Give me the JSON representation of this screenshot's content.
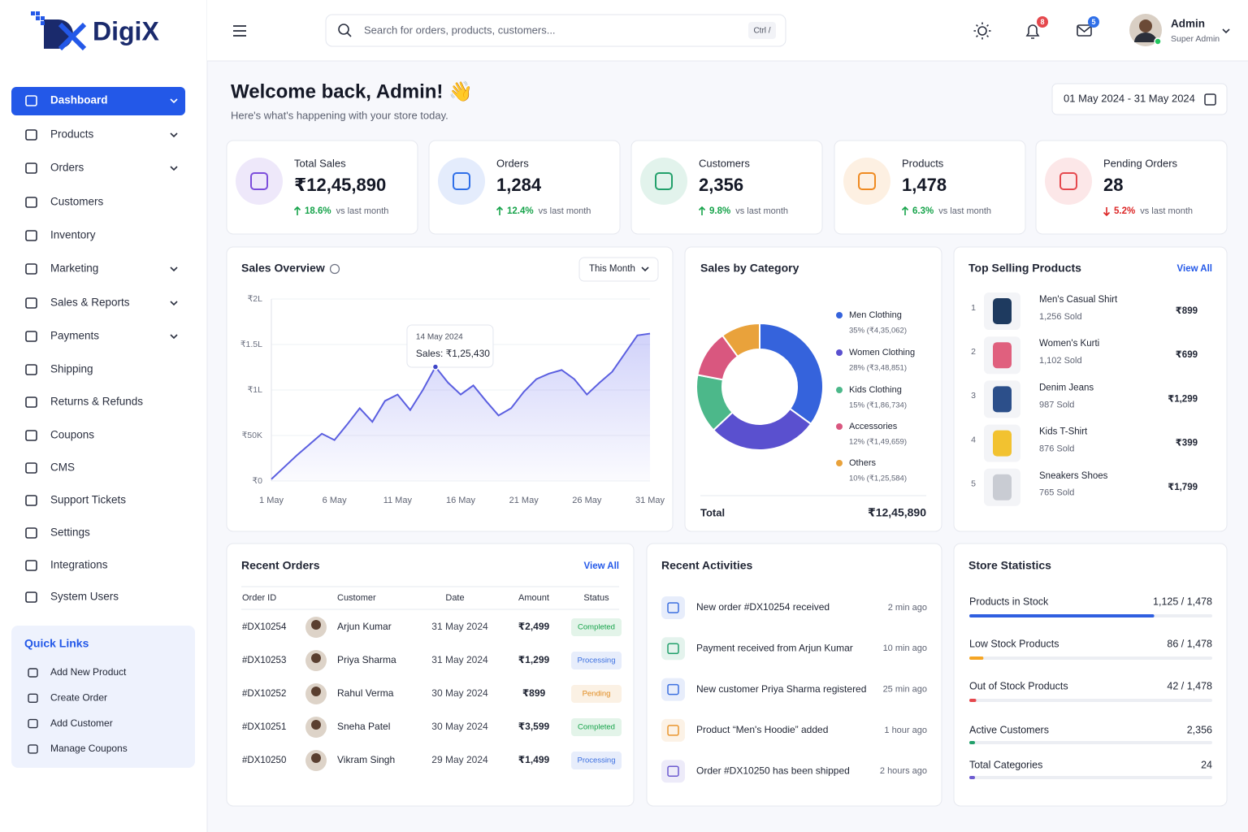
{
  "brand": "DigiX",
  "sidebar": {
    "menu": [
      {
        "label": "Dashboard",
        "expandable": true,
        "active": true
      },
      {
        "label": "Products",
        "expandable": true
      },
      {
        "label": "Orders",
        "expandable": true
      },
      {
        "label": "Customers"
      },
      {
        "label": "Inventory"
      },
      {
        "label": "Marketing",
        "expandable": true
      },
      {
        "label": "Sales & Reports",
        "expandable": true
      },
      {
        "label": "Payments",
        "expandable": true
      },
      {
        "label": "Shipping"
      },
      {
        "label": "Returns & Refunds"
      },
      {
        "label": "Coupons"
      },
      {
        "label": "CMS"
      },
      {
        "label": "Support Tickets"
      },
      {
        "label": "Settings"
      },
      {
        "label": "Integrations"
      },
      {
        "label": "System Users"
      }
    ],
    "quick_links_title": "Quick Links",
    "quick_links": [
      "Add New Product",
      "Create Order",
      "Add Customer",
      "Manage Coupons"
    ]
  },
  "header": {
    "search_placeholder": "Search for orders, products, customers...",
    "shortcut": "Ctrl /",
    "notifications": 8,
    "messages": 5,
    "user_name": "Admin",
    "user_role": "Super Admin"
  },
  "welcome": {
    "title": "Welcome back, Admin! 👋",
    "subtitle": "Here's what's happening with your store today.",
    "date_range": "01 May 2024 - 31 May 2024"
  },
  "kpis": [
    {
      "label": "Total Sales",
      "value": "₹12,45,890",
      "change": "18.6%",
      "direction": "up",
      "change_color": "#16a34a",
      "compare": "vs last month",
      "color": "#7c4ddb"
    },
    {
      "label": "Orders",
      "value": "1,284",
      "change": "12.4%",
      "direction": "up",
      "change_color": "#16a34a",
      "compare": "vs last month",
      "color": "#2f6fe8"
    },
    {
      "label": "Customers",
      "value": "2,356",
      "change": "9.8%",
      "direction": "up",
      "change_color": "#16a34a",
      "compare": "vs last month",
      "color": "#22a06b"
    },
    {
      "label": "Products",
      "value": "1,478",
      "change": "6.3%",
      "direction": "up",
      "change_color": "#16a34a",
      "compare": "vs last month",
      "color": "#ef8a21"
    },
    {
      "label": "Pending Orders",
      "value": "28",
      "change": "5.2%",
      "direction": "down",
      "change_color": "#dc2626",
      "compare": "vs last month",
      "color": "#e5484d"
    }
  ],
  "chart_data": [
    {
      "type": "line",
      "title": "Sales Overview",
      "period": "This Month",
      "categories": [
        "1 May",
        null,
        null,
        null,
        null,
        "6 May",
        null,
        null,
        null,
        null,
        "11 May",
        null,
        null,
        null,
        null,
        "16 May",
        null,
        null,
        null,
        null,
        "21 May",
        null,
        null,
        null,
        null,
        "26 May",
        null,
        null,
        null,
        null,
        "31 May"
      ],
      "values": [
        2000,
        15000,
        28000,
        40000,
        52000,
        45000,
        62000,
        80000,
        65000,
        88000,
        95000,
        78000,
        100000,
        125430,
        108000,
        95000,
        105000,
        88000,
        72000,
        80000,
        98000,
        112000,
        118000,
        122000,
        112000,
        95000,
        108000,
        120000,
        140000,
        160000,
        162000
      ],
      "color": "#5b5fe0",
      "ylim": [
        0,
        200000
      ],
      "yticks": [
        {
          "value": 0,
          "label": "₹0"
        },
        {
          "value": 50000,
          "label": "₹50K"
        },
        {
          "value": 100000,
          "label": "₹1L"
        },
        {
          "value": 150000,
          "label": "₹1.5L"
        },
        {
          "value": 200000,
          "label": "₹2L"
        }
      ],
      "grid": true,
      "annotation": {
        "title": "14 May 2024",
        "value": 125430,
        "label": "Sales: ₹1,25,430"
      }
    },
    {
      "type": "pie",
      "donut": true,
      "title": "Sales by Category",
      "categories": [
        "Men Clothing",
        "Women Clothing",
        "Kids Clothing",
        "Accessories",
        "Others"
      ],
      "values": [
        35,
        28,
        15,
        12,
        10
      ],
      "value_labels": [
        "35% (₹4,35,062)",
        "28% (₹3,48,851)",
        "15% (₹1,86,734)",
        "12% (₹1,49,659)",
        "10% (₹1,25,584)"
      ],
      "colors": [
        "#3563dc",
        "#5a50cf",
        "#4cb88a",
        "#d9577f",
        "#e9a23b"
      ],
      "total_label": "Total",
      "total_value": "₹12,45,890"
    }
  ],
  "top_products": {
    "title": "Top Selling Products",
    "view_all": "View All",
    "items": [
      {
        "rank": 1,
        "name": "Men's Casual Shirt",
        "sold": "1,256 Sold",
        "price": "₹899",
        "thumb_color": "#1e3a5f"
      },
      {
        "rank": 2,
        "name": "Women's Kurti",
        "sold": "1,102 Sold",
        "price": "₹699",
        "thumb_color": "#e0607e"
      },
      {
        "rank": 3,
        "name": "Denim Jeans",
        "sold": "987 Sold",
        "price": "₹1,299",
        "thumb_color": "#2c4f8a"
      },
      {
        "rank": 4,
        "name": "Kids T-Shirt",
        "sold": "876 Sold",
        "price": "₹399",
        "thumb_color": "#f2c230"
      },
      {
        "rank": 5,
        "name": "Sneakers Shoes",
        "sold": "765 Sold",
        "price": "₹1,799",
        "thumb_color": "#c9ccd3"
      }
    ]
  },
  "recent_orders": {
    "title": "Recent Orders",
    "view_all": "View All",
    "columns": [
      "Order ID",
      "Customer",
      "Date",
      "Amount",
      "Status"
    ],
    "rows": [
      {
        "id": "#DX10254",
        "customer": "Arjun Kumar",
        "date": "31 May 2024",
        "amount": "₹2,499",
        "status": "Completed",
        "status_color": "#16a34a"
      },
      {
        "id": "#DX10253",
        "customer": "Priya Sharma",
        "date": "31 May 2024",
        "amount": "₹1,299",
        "status": "Processing",
        "status_color": "#3b6fe0"
      },
      {
        "id": "#DX10252",
        "customer": "Rahul Verma",
        "date": "30 May 2024",
        "amount": "₹899",
        "status": "Pending",
        "status_color": "#e08a1e"
      },
      {
        "id": "#DX10251",
        "customer": "Sneha Patel",
        "date": "30 May 2024",
        "amount": "₹3,599",
        "status": "Completed",
        "status_color": "#16a34a"
      },
      {
        "id": "#DX10250",
        "customer": "Vikram Singh",
        "date": "29 May 2024",
        "amount": "₹1,499",
        "status": "Processing",
        "status_color": "#3b6fe0"
      }
    ]
  },
  "recent_activities": {
    "title": "Recent Activities",
    "items": [
      {
        "text": "New order #DX10254 received",
        "time": "2 min ago",
        "icon_color": "#3b6fe0"
      },
      {
        "text": "Payment received from Arjun Kumar",
        "time": "10 min ago",
        "icon_color": "#22a06b"
      },
      {
        "text": "New customer Priya Sharma registered",
        "time": "25 min ago",
        "icon_color": "#3b6fe0"
      },
      {
        "text": "Product “Men's Hoodie” added",
        "time": "1 hour ago",
        "icon_color": "#e9962f"
      },
      {
        "text": "Order #DX10250 has been shipped",
        "time": "2 hours ago",
        "icon_color": "#6d5bd0"
      }
    ]
  },
  "store_statistics": {
    "title": "Store Statistics",
    "items": [
      {
        "label": "Products in Stock",
        "value": 1125,
        "max": 1478,
        "value_label": "1,125 / 1,478",
        "color": "#2f5fe0"
      },
      {
        "label": "Low Stock Products",
        "value": 86,
        "max": 1478,
        "value_label": "86 / 1,478",
        "color": "#f5a524"
      },
      {
        "label": "Out of Stock Products",
        "value": 42,
        "max": 1478,
        "value_label": "42 / 1,478",
        "color": "#e5484d"
      },
      {
        "label": "Active Customers",
        "value": 2356,
        "value_label": "2,356",
        "color": "#22a06b"
      },
      {
        "label": "Total Categories",
        "value": 24,
        "color": "#6d5bd0"
      }
    ]
  }
}
